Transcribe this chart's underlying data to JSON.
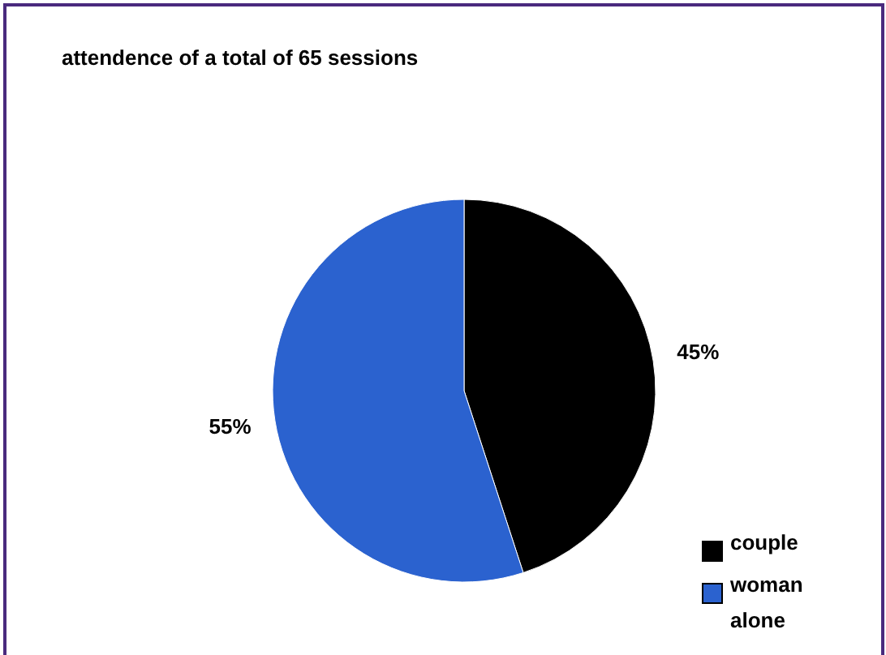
{
  "chart_data": {
    "type": "pie",
    "title": "attendence of a total of  65 sessions",
    "categories": [
      "couple",
      "woman alone"
    ],
    "values": [
      45,
      55
    ],
    "colors": [
      "#000000",
      "#2b62cf"
    ],
    "value_labels": [
      "45%",
      "55%"
    ],
    "legend": "bottom right"
  }
}
